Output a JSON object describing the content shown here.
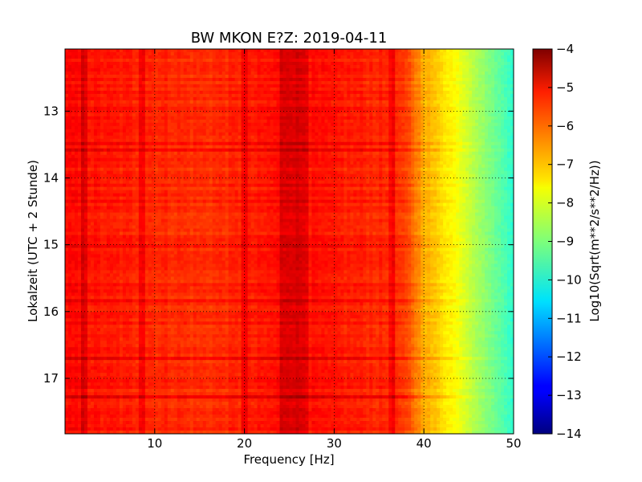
{
  "chart_data": {
    "type": "heatmap",
    "title": "BW MKON E?Z: 2019-04-11",
    "xlabel": "Frequency [Hz]",
    "ylabel": "Lokalzeit (UTC + 2 Stunde)",
    "xlim": [
      0,
      50
    ],
    "ylim": [
      12.07,
      17.83
    ],
    "y_inverted": true,
    "x_ticks": [
      10,
      20,
      30,
      40,
      50
    ],
    "y_ticks": [
      13,
      14,
      15,
      16,
      17
    ],
    "grid": true,
    "colormap": "jet",
    "colorbar": {
      "label": "Log10(Sqrt(m**2/s**2/Hz))",
      "range": [
        -14,
        -4
      ],
      "ticks": [
        -4,
        -5,
        -6,
        -7,
        -8,
        -9,
        -10,
        -11,
        -12,
        -13,
        -14
      ]
    },
    "spectrum_profile": {
      "frequency_hz": [
        0,
        5,
        10,
        15,
        20,
        25,
        30,
        35,
        37,
        38.5,
        40,
        42,
        44,
        46,
        48,
        50
      ],
      "value_log10": [
        -5.3,
        -5.5,
        -5.6,
        -5.7,
        -5.6,
        -5.3,
        -5.5,
        -5.6,
        -5.7,
        -6.1,
        -6.9,
        -7.4,
        -7.9,
        -8.6,
        -9.2,
        -9.8
      ]
    }
  }
}
